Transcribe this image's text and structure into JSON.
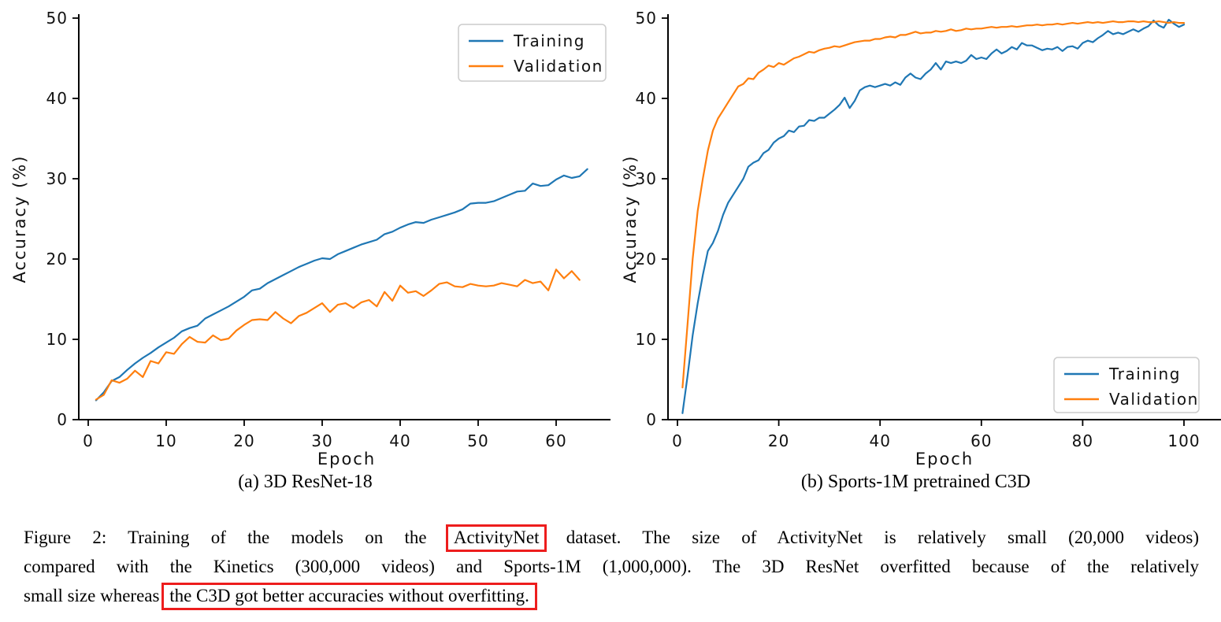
{
  "figure": {
    "subcaption_a": "(a) 3D ResNet-18",
    "subcaption_b": "(b) Sports-1M pretrained C3D",
    "caption": {
      "line1_pre": "Figure 2:  Training of the models on the",
      "line1_highlight": "ActivityNet",
      "line1_post": "dataset.  The size of ActivityNet is relatively small (20,000 videos)",
      "line2": "compared with the Kinetics (300,000 videos) and Sports-1M (1,000,000). The 3D ResNet overfitted because of the relatively",
      "line3_pre": "small size whereas",
      "line3_highlight": "the C3D got better accuracies without overfitting."
    },
    "highlight_color": "#ed1d1d"
  },
  "chart_data": [
    {
      "id": "a",
      "type": "line",
      "title": "",
      "xlabel": "Epoch",
      "ylabel": "Accuracy (%)",
      "xlim": [
        -1.5,
        67
      ],
      "ylim": [
        0,
        50
      ],
      "xticks": [
        0,
        10,
        20,
        30,
        40,
        50,
        60
      ],
      "yticks": [
        0,
        10,
        20,
        30,
        40,
        50
      ],
      "grid": false,
      "legend_position": "upper right",
      "series": [
        {
          "name": "Training",
          "color": "#1f77b4",
          "x_start": 1,
          "x_step": 1,
          "values": [
            2.4,
            3.4,
            4.8,
            5.3,
            6.2,
            7.0,
            7.7,
            8.3,
            9.0,
            9.6,
            10.2,
            11.0,
            11.4,
            11.7,
            12.6,
            13.1,
            13.6,
            14.1,
            14.7,
            15.3,
            16.1,
            16.3,
            17.0,
            17.5,
            18.0,
            18.5,
            19.0,
            19.4,
            19.8,
            20.1,
            20.0,
            20.6,
            21.0,
            21.4,
            21.8,
            22.1,
            22.4,
            23.1,
            23.4,
            23.9,
            24.3,
            24.6,
            24.5,
            24.9,
            25.2,
            25.5,
            25.8,
            26.2,
            26.9,
            27.0,
            27.0,
            27.2,
            27.6,
            28.0,
            28.4,
            28.5,
            29.4,
            29.1,
            29.2,
            29.9,
            30.4,
            30.1,
            30.3,
            31.2
          ]
        },
        {
          "name": "Validation",
          "color": "#ff7f0e",
          "x_start": 1,
          "x_step": 1,
          "values": [
            2.5,
            3.1,
            4.9,
            4.6,
            5.1,
            6.1,
            5.3,
            7.3,
            7.0,
            8.4,
            8.2,
            9.4,
            10.3,
            9.7,
            9.6,
            10.5,
            9.9,
            10.1,
            11.1,
            11.8,
            12.4,
            12.5,
            12.4,
            13.4,
            12.6,
            12.0,
            12.9,
            13.3,
            13.9,
            14.5,
            13.4,
            14.3,
            14.5,
            13.9,
            14.6,
            14.9,
            14.1,
            15.9,
            14.8,
            16.7,
            15.8,
            16.0,
            15.4,
            16.1,
            16.9,
            17.1,
            16.6,
            16.5,
            16.9,
            16.7,
            16.6,
            16.7,
            17.0,
            16.8,
            16.6,
            17.4,
            17.0,
            17.2,
            16.1,
            18.7,
            17.6,
            18.5,
            17.4
          ]
        }
      ]
    },
    {
      "id": "b",
      "type": "line",
      "title": "",
      "xlabel": "Epoch",
      "ylabel": "Accuracy (%)",
      "xlim": [
        -2,
        107
      ],
      "ylim": [
        0,
        50
      ],
      "xticks": [
        0,
        20,
        40,
        60,
        80,
        100
      ],
      "yticks": [
        0,
        10,
        20,
        30,
        40,
        50
      ],
      "grid": false,
      "legend_position": "lower right",
      "series": [
        {
          "name": "Training",
          "color": "#1f77b4",
          "x_start": 1,
          "x_step": 1,
          "values": [
            0.8,
            5.5,
            10.5,
            14.5,
            18.0,
            21.0,
            22.0,
            23.5,
            25.5,
            27.0,
            28.0,
            29.0,
            30.0,
            31.5,
            32.0,
            32.3,
            33.2,
            33.6,
            34.5,
            35.0,
            35.3,
            36.0,
            35.8,
            36.5,
            36.6,
            37.3,
            37.2,
            37.6,
            37.6,
            38.1,
            38.6,
            39.2,
            40.1,
            38.8,
            39.7,
            41.0,
            41.4,
            41.6,
            41.4,
            41.6,
            41.8,
            41.6,
            42.0,
            41.7,
            42.6,
            43.1,
            42.6,
            42.4,
            43.1,
            43.6,
            44.4,
            43.6,
            44.6,
            44.4,
            44.6,
            44.4,
            44.7,
            45.4,
            44.9,
            45.1,
            44.9,
            45.6,
            46.1,
            45.6,
            45.9,
            46.4,
            46.1,
            46.9,
            46.6,
            46.6,
            46.3,
            46.0,
            46.2,
            46.1,
            46.4,
            45.9,
            46.4,
            46.5,
            46.2,
            46.9,
            47.2,
            47.0,
            47.5,
            47.9,
            48.4,
            48.0,
            48.2,
            48.0,
            48.3,
            48.6,
            48.3,
            48.7,
            49.0,
            49.7,
            49.1,
            48.8,
            49.8,
            49.3,
            48.9,
            49.2
          ]
        },
        {
          "name": "Validation",
          "color": "#ff7f0e",
          "x_start": 1,
          "x_step": 1,
          "values": [
            4.0,
            12.0,
            20.0,
            26.0,
            30.0,
            33.5,
            36.0,
            37.5,
            38.5,
            39.5,
            40.5,
            41.5,
            41.8,
            42.5,
            42.4,
            43.2,
            43.6,
            44.1,
            43.9,
            44.4,
            44.2,
            44.6,
            45.0,
            45.2,
            45.5,
            45.8,
            45.7,
            46.0,
            46.2,
            46.3,
            46.5,
            46.4,
            46.6,
            46.8,
            47.0,
            47.1,
            47.2,
            47.2,
            47.4,
            47.4,
            47.6,
            47.7,
            47.6,
            47.9,
            47.9,
            48.1,
            48.3,
            48.1,
            48.2,
            48.2,
            48.4,
            48.3,
            48.4,
            48.6,
            48.4,
            48.5,
            48.7,
            48.6,
            48.7,
            48.7,
            48.8,
            48.9,
            48.8,
            48.9,
            48.9,
            49.0,
            48.9,
            49.0,
            49.1,
            49.1,
            49.2,
            49.1,
            49.2,
            49.2,
            49.3,
            49.2,
            49.3,
            49.4,
            49.3,
            49.4,
            49.5,
            49.4,
            49.5,
            49.4,
            49.5,
            49.6,
            49.5,
            49.5,
            49.6,
            49.6,
            49.5,
            49.6,
            49.5,
            49.5,
            49.6,
            49.5,
            49.4,
            49.5,
            49.4,
            49.4
          ]
        }
      ]
    }
  ]
}
